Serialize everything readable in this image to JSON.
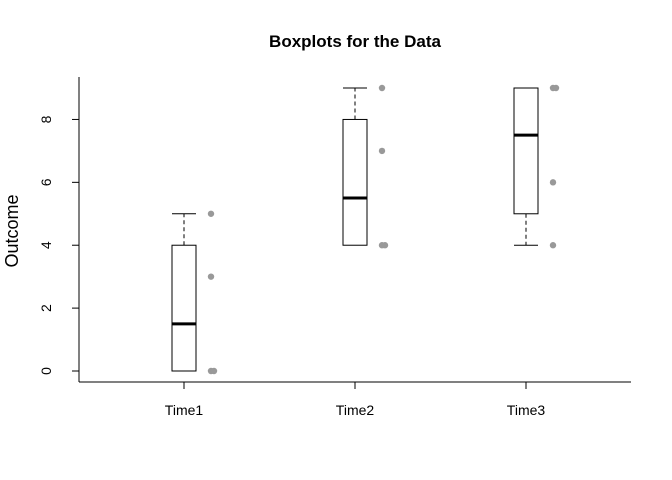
{
  "chart_data": {
    "type": "boxplot",
    "title": "Boxplots for the Data",
    "xlabel": "",
    "ylabel": "Outcome",
    "categories": [
      "Time1",
      "Time2",
      "Time3"
    ],
    "ylim": [
      -0.35,
      9.35
    ],
    "yticks": [
      0,
      2,
      4,
      6,
      8
    ],
    "grid": false,
    "legend": "none",
    "boxes": [
      {
        "name": "Time1",
        "whisker_low": 0,
        "q1": 0,
        "median": 1.5,
        "q3": 4,
        "whisker_high": 5
      },
      {
        "name": "Time2",
        "whisker_low": 4,
        "q1": 4,
        "median": 5.5,
        "q3": 8,
        "whisker_high": 9
      },
      {
        "name": "Time3",
        "whisker_low": 4,
        "q1": 5,
        "median": 7.5,
        "q3": 9,
        "whisker_high": 9
      }
    ],
    "points": [
      {
        "group": "Time1",
        "values": [
          0,
          0,
          3,
          5
        ]
      },
      {
        "group": "Time2",
        "values": [
          4,
          4,
          7,
          9
        ]
      },
      {
        "group": "Time3",
        "values": [
          4,
          6,
          9,
          9
        ]
      }
    ],
    "colors": {
      "box": "#000000",
      "points": "#999999"
    }
  }
}
